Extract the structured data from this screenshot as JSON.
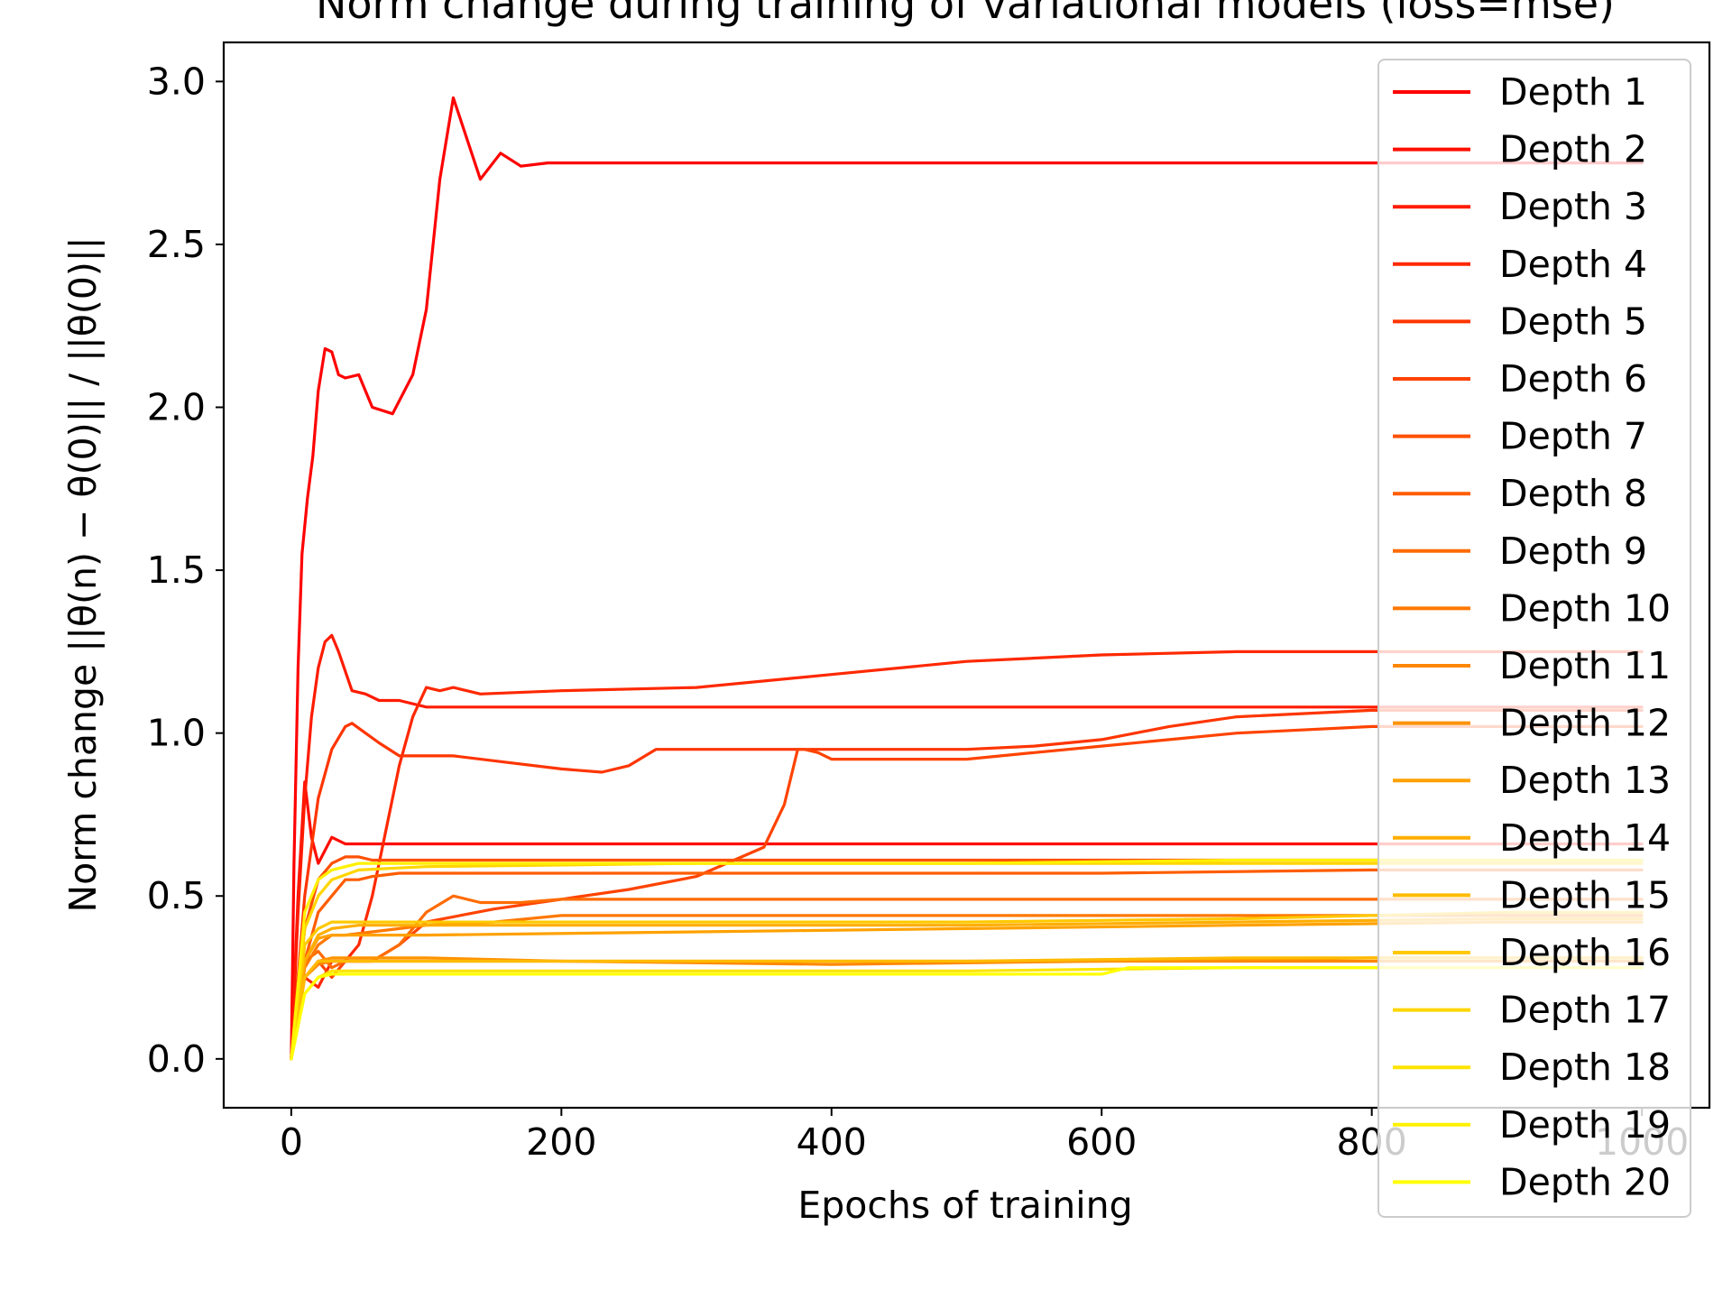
{
  "chart_data": {
    "type": "line",
    "title": "Norm change during training of variational models (loss=mse)",
    "xlabel": "Epochs of training",
    "ylabel": "Norm change ||θ(n) − θ(0)|| / ||θ(0)||",
    "xlim": [
      -50,
      1050
    ],
    "ylim": [
      -0.15,
      3.12
    ],
    "xticks": [
      0,
      200,
      400,
      600,
      800,
      1000
    ],
    "yticks": [
      0.0,
      0.5,
      1.0,
      1.5,
      2.0,
      2.5,
      3.0
    ],
    "xtick_labels": [
      "0",
      "200",
      "400",
      "600",
      "800",
      "1000"
    ],
    "ytick_labels": [
      "0.0",
      "0.5",
      "1.0",
      "1.5",
      "2.0",
      "2.5",
      "3.0"
    ],
    "grid": false,
    "legend_position": "upper right",
    "series": [
      {
        "name": "Depth 1",
        "color": "#ff0000",
        "x": [
          0,
          2,
          5,
          8,
          12,
          16,
          20,
          25,
          30,
          35,
          40,
          50,
          60,
          75,
          90,
          100,
          110,
          120,
          140,
          155,
          170,
          190,
          210,
          1000
        ],
        "y": [
          0,
          0.6,
          1.2,
          1.55,
          1.72,
          1.85,
          2.05,
          2.18,
          2.17,
          2.1,
          2.09,
          2.1,
          2.0,
          1.98,
          2.1,
          2.3,
          2.7,
          2.95,
          2.7,
          2.78,
          2.74,
          2.75,
          2.75,
          2.75
        ]
      },
      {
        "name": "Depth 2",
        "color": "#ff0d00",
        "x": [
          0,
          5,
          10,
          15,
          20,
          30,
          40,
          60,
          80,
          100,
          150,
          1000
        ],
        "y": [
          0,
          0.5,
          0.85,
          0.68,
          0.6,
          0.68,
          0.66,
          0.66,
          0.66,
          0.66,
          0.66,
          0.66
        ]
      },
      {
        "name": "Depth 3",
        "color": "#ff1b00",
        "x": [
          0,
          5,
          10,
          15,
          20,
          25,
          30,
          35,
          45,
          55,
          65,
          80,
          100,
          150,
          1000
        ],
        "y": [
          0,
          0.45,
          0.8,
          1.05,
          1.2,
          1.28,
          1.3,
          1.25,
          1.13,
          1.12,
          1.1,
          1.1,
          1.08,
          1.08,
          1.08
        ]
      },
      {
        "name": "Depth 4",
        "color": "#ff2800",
        "x": [
          0,
          5,
          10,
          20,
          30,
          40,
          50,
          60,
          70,
          80,
          90,
          100,
          110,
          120,
          130,
          140,
          200,
          300,
          400,
          500,
          600,
          700,
          800,
          1000
        ],
        "y": [
          0,
          0.2,
          0.25,
          0.22,
          0.3,
          0.3,
          0.35,
          0.5,
          0.7,
          0.9,
          1.05,
          1.14,
          1.13,
          1.14,
          1.13,
          1.12,
          1.13,
          1.14,
          1.18,
          1.22,
          1.24,
          1.25,
          1.25,
          1.25
        ]
      },
      {
        "name": "Depth 5",
        "color": "#ff3500",
        "x": [
          0,
          10,
          20,
          30,
          40,
          45,
          55,
          65,
          80,
          120,
          160,
          200,
          230,
          250,
          270,
          300,
          400,
          500,
          550,
          600,
          650,
          700,
          800,
          1000
        ],
        "y": [
          0,
          0.5,
          0.8,
          0.95,
          1.02,
          1.03,
          1.0,
          0.97,
          0.93,
          0.93,
          0.91,
          0.89,
          0.88,
          0.9,
          0.95,
          0.95,
          0.95,
          0.95,
          0.96,
          0.98,
          1.02,
          1.05,
          1.07,
          1.07
        ]
      },
      {
        "name": "Depth 6",
        "color": "#ff4300",
        "x": [
          0,
          10,
          20,
          30,
          40,
          60,
          80,
          100,
          150,
          200,
          250,
          300,
          350,
          365,
          375,
          380,
          390,
          400,
          450,
          500,
          550,
          600,
          650,
          700,
          800,
          1000
        ],
        "y": [
          0,
          0.25,
          0.3,
          0.25,
          0.3,
          0.3,
          0.35,
          0.42,
          0.46,
          0.49,
          0.52,
          0.56,
          0.65,
          0.78,
          0.95,
          0.95,
          0.94,
          0.92,
          0.92,
          0.92,
          0.94,
          0.96,
          0.98,
          1.0,
          1.02,
          1.02
        ]
      },
      {
        "name": "Depth 7",
        "color": "#ff5000",
        "x": [
          0,
          10,
          20,
          30,
          40,
          50,
          60,
          80,
          100,
          150,
          1000
        ],
        "y": [
          0,
          0.4,
          0.55,
          0.6,
          0.62,
          0.62,
          0.61,
          0.61,
          0.61,
          0.61,
          0.61
        ]
      },
      {
        "name": "Depth 8",
        "color": "#ff5d00",
        "x": [
          0,
          10,
          20,
          30,
          40,
          50,
          60,
          80,
          100,
          120,
          140,
          200,
          400,
          600,
          800,
          1000
        ],
        "y": [
          0,
          0.3,
          0.45,
          0.5,
          0.55,
          0.55,
          0.56,
          0.57,
          0.57,
          0.57,
          0.57,
          0.57,
          0.57,
          0.57,
          0.58,
          0.58
        ]
      },
      {
        "name": "Depth 9",
        "color": "#ff6b00",
        "x": [
          0,
          10,
          20,
          30,
          40,
          60,
          80,
          100,
          120,
          140,
          170,
          200,
          250,
          1000
        ],
        "y": [
          0,
          0.3,
          0.33,
          0.28,
          0.3,
          0.3,
          0.35,
          0.45,
          0.5,
          0.48,
          0.48,
          0.49,
          0.49,
          0.49
        ]
      },
      {
        "name": "Depth 10",
        "color": "#ff7800",
        "x": [
          0,
          10,
          20,
          30,
          40,
          60,
          80,
          100,
          150,
          200,
          300,
          600,
          1000
        ],
        "y": [
          0,
          0.28,
          0.35,
          0.38,
          0.38,
          0.39,
          0.4,
          0.41,
          0.42,
          0.44,
          0.44,
          0.44,
          0.44
        ]
      },
      {
        "name": "Depth 11",
        "color": "#ff8600",
        "x": [
          0,
          10,
          20,
          30,
          40,
          80,
          200,
          400,
          600,
          800,
          1000
        ],
        "y": [
          0,
          0.25,
          0.29,
          0.3,
          0.3,
          0.3,
          0.3,
          0.29,
          0.3,
          0.3,
          0.3
        ]
      },
      {
        "name": "Depth 12",
        "color": "#ff9300",
        "x": [
          0,
          10,
          20,
          30,
          50,
          100,
          200,
          400,
          600,
          800,
          1000
        ],
        "y": [
          0,
          0.25,
          0.3,
          0.31,
          0.31,
          0.31,
          0.3,
          0.3,
          0.3,
          0.31,
          0.31
        ]
      },
      {
        "name": "Depth 13",
        "color": "#ffa100",
        "x": [
          0,
          10,
          20,
          30,
          50,
          100,
          300,
          500,
          700,
          900,
          1000
        ],
        "y": [
          0,
          0.3,
          0.37,
          0.38,
          0.38,
          0.38,
          0.39,
          0.4,
          0.41,
          0.42,
          0.42
        ]
      },
      {
        "name": "Depth 14",
        "color": "#ffae00",
        "x": [
          0,
          10,
          20,
          30,
          50,
          100,
          300,
          500,
          700,
          900,
          1000
        ],
        "y": [
          0,
          0.3,
          0.38,
          0.4,
          0.41,
          0.41,
          0.41,
          0.41,
          0.42,
          0.43,
          0.43
        ]
      },
      {
        "name": "Depth 15",
        "color": "#ffbb00",
        "x": [
          0,
          10,
          20,
          30,
          50,
          100,
          300,
          500,
          700,
          900,
          1000
        ],
        "y": [
          0,
          0.25,
          0.3,
          0.3,
          0.3,
          0.3,
          0.3,
          0.3,
          0.31,
          0.31,
          0.31
        ]
      },
      {
        "name": "Depth 16",
        "color": "#ffc900",
        "x": [
          0,
          10,
          20,
          30,
          40,
          60,
          100,
          300,
          500,
          700,
          900,
          1000
        ],
        "y": [
          0,
          0.35,
          0.4,
          0.42,
          0.42,
          0.42,
          0.42,
          0.42,
          0.42,
          0.43,
          0.45,
          0.45
        ]
      },
      {
        "name": "Depth 17",
        "color": "#ffd600",
        "x": [
          0,
          10,
          20,
          30,
          50,
          100,
          300,
          500,
          700,
          900,
          1000
        ],
        "y": [
          0,
          0.4,
          0.5,
          0.55,
          0.58,
          0.59,
          0.6,
          0.6,
          0.6,
          0.6,
          0.6
        ]
      },
      {
        "name": "Depth 18",
        "color": "#ffe400",
        "x": [
          0,
          10,
          20,
          30,
          50,
          100,
          300,
          500,
          700,
          900,
          1000
        ],
        "y": [
          0,
          0.2,
          0.25,
          0.27,
          0.27,
          0.27,
          0.27,
          0.27,
          0.28,
          0.28,
          0.28
        ]
      },
      {
        "name": "Depth 19",
        "color": "#fff100",
        "x": [
          0,
          10,
          20,
          30,
          50,
          100,
          200,
          300,
          500,
          700,
          900,
          1000
        ],
        "y": [
          0,
          0.45,
          0.55,
          0.58,
          0.6,
          0.6,
          0.6,
          0.6,
          0.6,
          0.61,
          0.61,
          0.61
        ]
      },
      {
        "name": "Depth 20",
        "color": "#ffff00",
        "x": [
          0,
          10,
          20,
          30,
          50,
          100,
          300,
          500,
          600,
          620,
          700,
          900,
          1000
        ],
        "y": [
          0,
          0.2,
          0.25,
          0.26,
          0.26,
          0.26,
          0.26,
          0.26,
          0.26,
          0.28,
          0.28,
          0.28,
          0.28
        ]
      }
    ]
  }
}
